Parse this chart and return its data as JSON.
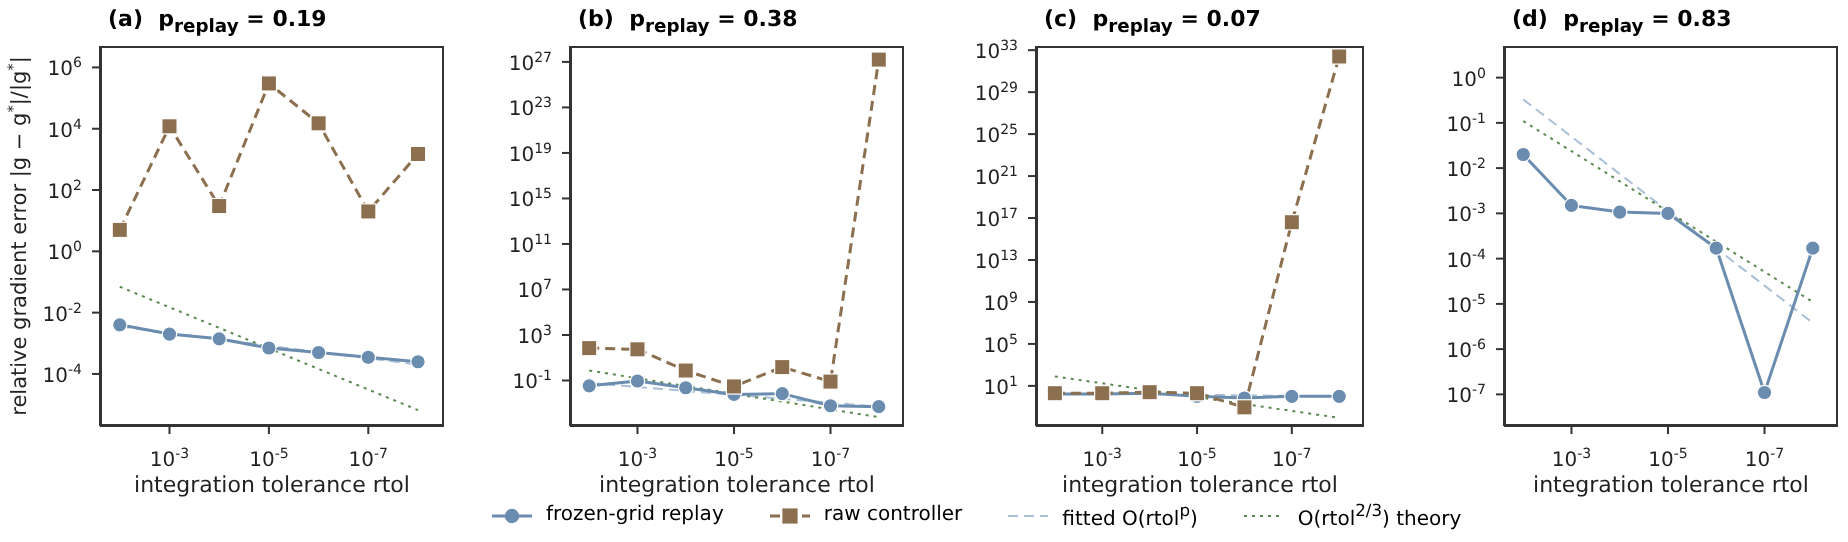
{
  "chart_data": [
    {
      "type": "line",
      "title": "(a)  p$_{replay}$ = 0.19",
      "xlabel": "integration tolerance rtol",
      "ylabel": "relative gradient error |g − g$^{*}$|/|g$^{*}$|",
      "log": "xy",
      "legend": "bottom",
      "xlim": [
        0.025,
        3e-09
      ],
      "xticks": [
        {
          "value": 0.001,
          "label": "10$^{-3}$"
        },
        {
          "value": 1e-05,
          "label": "10$^{-5}$"
        },
        {
          "value": 1e-07,
          "label": "10$^{-7}$"
        }
      ],
      "ylim": [
        2e-06,
        5000000
      ],
      "yticks": [
        {
          "value": 0.0001,
          "label": "10$^{-4}$"
        },
        {
          "value": 0.01,
          "label": "10$^{-2}$"
        },
        {
          "value": 1,
          "label": "10$^{0}$"
        },
        {
          "value": 100,
          "label": "10$^{2}$"
        },
        {
          "value": 10000,
          "label": "10$^{4}$"
        },
        {
          "value": 1000000,
          "label": "10$^{6}$"
        }
      ],
      "series": [
        {
          "name": "frozen-grid replay",
          "color": "#6a8caf",
          "marker": "circle",
          "line_style": "solid",
          "x": [
            0.01,
            0.001,
            0.0001,
            1e-05,
            1e-06,
            1e-07,
            1e-08
          ],
          "values": [
            0.004,
            0.002,
            0.0014,
            0.0007,
            0.0005,
            0.00035,
            0.00025
          ]
        },
        {
          "name": "raw controller",
          "color": "#8b6f4e",
          "marker": "square",
          "line_style": "dashed",
          "x": [
            0.01,
            0.001,
            0.0001,
            1e-05,
            1e-06,
            1e-07,
            1e-08
          ],
          "values": [
            5,
            12000,
            30,
            300000,
            15000,
            20,
            1500
          ]
        },
        {
          "name": "fitted O(rtol$^{p}$)",
          "color": "#a9bfd6",
          "marker": "none",
          "line_style": "dashed",
          "x": [
            0.01,
            1e-08
          ],
          "values": [
            0.0035,
            0.0002
          ]
        },
        {
          "name": "O(rtol$^{2/3}$) theory",
          "color": "#5b8a4f",
          "marker": "none",
          "line_style": "dotted",
          "x": [
            0.01,
            1e-08
          ],
          "values": [
            0.07,
            6.6e-06
          ]
        }
      ]
    },
    {
      "type": "line",
      "title": "(b)  p$_{replay}$ = 0.38",
      "xlabel": "integration tolerance rtol",
      "log": "xy",
      "xlim": [
        0.025,
        3e-09
      ],
      "xticks": [
        {
          "value": 0.001,
          "label": "10$^{-3}$"
        },
        {
          "value": 1e-05,
          "label": "10$^{-5}$"
        },
        {
          "value": 1e-07,
          "label": "10$^{-7}$"
        }
      ],
      "ylim": [
        1e-05,
        2.5e+28
      ],
      "yticks": [
        {
          "value": 0.1,
          "label": "10$^{-1}$"
        },
        {
          "value": 1000,
          "label": "10$^{3}$"
        },
        {
          "value": 10000000.0,
          "label": "10$^{7}$"
        },
        {
          "value": 100000000000.0,
          "label": "10$^{11}$"
        },
        {
          "value": 1000000000000000.0,
          "label": "10$^{15}$"
        },
        {
          "value": 1e+19,
          "label": "10$^{19}$"
        },
        {
          "value": 1e+23,
          "label": "10$^{23}$"
        },
        {
          "value": 1e+27,
          "label": "10$^{27}$"
        }
      ],
      "series": [
        {
          "color": "#6a8caf",
          "marker": "circle",
          "line_style": "solid",
          "x": [
            0.01,
            0.001,
            0.0001,
            1e-05,
            1e-06,
            1e-07,
            1e-08
          ],
          "values": [
            0.034,
            0.09,
            0.023,
            0.006,
            0.007,
            0.0006,
            0.0005
          ]
        },
        {
          "color": "#8b6f4e",
          "marker": "square",
          "line_style": "dashed",
          "x": [
            0.01,
            0.001,
            0.0001,
            1e-05,
            1e-06,
            1e-07,
            1e-08
          ],
          "values": [
            70,
            55,
            0.75,
            0.03,
            1.5,
            0.08,
            1.6e+27
          ]
        },
        {
          "color": "#a9bfd6",
          "marker": "none",
          "line_style": "dashed",
          "x": [
            0.01,
            1e-08
          ],
          "values": [
            0.06,
            0.0005
          ]
        },
        {
          "color": "#5b8a4f",
          "marker": "none",
          "line_style": "dotted",
          "x": [
            0.01,
            1e-08
          ],
          "values": [
            0.75,
            6e-05
          ]
        }
      ]
    },
    {
      "type": "line",
      "title": "(c)  p$_{replay}$ = 0.07",
      "xlabel": "integration tolerance rtol",
      "log": "xy",
      "xlim": [
        0.025,
        3e-09
      ],
      "xticks": [
        {
          "value": 0.001,
          "label": "10$^{-3}$"
        },
        {
          "value": 1e-05,
          "label": "10$^{-5}$"
        },
        {
          "value": 1e-07,
          "label": "10$^{-7}$"
        }
      ],
      "ylim": [
        0.0015,
        2.5e+33
      ],
      "yticks": [
        {
          "value": 10,
          "label": "10$^{1}$"
        },
        {
          "value": 100000,
          "label": "10$^{5}$"
        },
        {
          "value": 1000000000.0,
          "label": "10$^{9}$"
        },
        {
          "value": 10000000000000.0,
          "label": "10$^{13}$"
        },
        {
          "value": 1e+17,
          "label": "10$^{17}$"
        },
        {
          "value": 1e+21,
          "label": "10$^{21}$"
        },
        {
          "value": 1e+25,
          "label": "10$^{25}$"
        },
        {
          "value": 1e+29,
          "label": "10$^{29}$"
        },
        {
          "value": 1e+33,
          "label": "10$^{33}$"
        }
      ],
      "series": [
        {
          "color": "#6a8caf",
          "marker": "circle",
          "line_style": "solid",
          "x": [
            0.01,
            0.001,
            0.0001,
            1e-05,
            1e-06,
            1e-07,
            1e-08
          ],
          "values": [
            1.7,
            1.7,
            2,
            1,
            0.7,
            1,
            1
          ]
        },
        {
          "color": "#8b6f4e",
          "marker": "square",
          "line_style": "dashed",
          "x": [
            0.01,
            0.001,
            0.0001,
            1e-05,
            1e-06,
            1e-07,
            1e-08
          ],
          "values": [
            2,
            2,
            2.5,
            2,
            0.09,
            4e+16,
            2.5e+32
          ]
        },
        {
          "color": "#a9bfd6",
          "marker": "none",
          "line_style": "dashed",
          "x": [
            0.01,
            1e-08
          ],
          "values": [
            2,
            1
          ]
        },
        {
          "color": "#5b8a4f",
          "marker": "none",
          "line_style": "dotted",
          "x": [
            0.01,
            1e-08
          ],
          "values": [
            80,
            0.009
          ]
        }
      ]
    },
    {
      "type": "line",
      "title": "(d)  p$_{replay}$ = 0.83",
      "xlabel": "integration tolerance rtol",
      "log": "xy",
      "xlim": [
        0.025,
        3e-09
      ],
      "xticks": [
        {
          "value": 0.001,
          "label": "10$^{-3}$"
        },
        {
          "value": 1e-05,
          "label": "10$^{-5}$"
        },
        {
          "value": 1e-07,
          "label": "10$^{-7}$"
        }
      ],
      "ylim": [
        2e-08,
        5
      ],
      "yticks": [
        {
          "value": 1e-07,
          "label": "10$^{-7}$"
        },
        {
          "value": 1e-06,
          "label": "10$^{-6}$"
        },
        {
          "value": 1e-05,
          "label": "10$^{-5}$"
        },
        {
          "value": 0.0001,
          "label": "10$^{-4}$"
        },
        {
          "value": 0.001,
          "label": "10$^{-3}$"
        },
        {
          "value": 0.01,
          "label": "10$^{-2}$"
        },
        {
          "value": 0.1,
          "label": "10$^{-1}$"
        },
        {
          "value": 1,
          "label": "10$^{0}$"
        }
      ],
      "series": [
        {
          "color": "#6a8caf",
          "marker": "circle",
          "line_style": "solid",
          "x": [
            0.01,
            0.001,
            0.0001,
            1e-05,
            1e-06,
            1e-07,
            1e-08
          ],
          "values": [
            0.02,
            0.0015,
            0.00107,
            0.001,
            0.00017,
            1.1e-07,
            0.00017
          ]
        },
        {
          "color": "#a9bfd6",
          "marker": "none",
          "line_style": "dashed",
          "x": [
            0.01,
            1e-08
          ],
          "values": [
            0.33,
            3.8e-06
          ]
        },
        {
          "color": "#5b8a4f",
          "marker": "none",
          "line_style": "dotted",
          "x": [
            0.01,
            1e-08
          ],
          "values": [
            0.11,
            1.1e-05
          ]
        }
      ]
    }
  ]
}
